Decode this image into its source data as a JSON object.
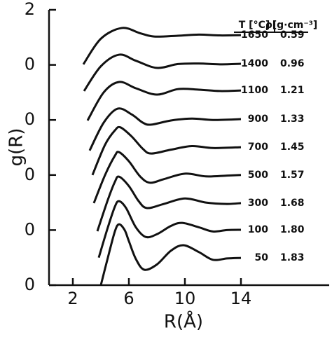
{
  "chart_data": {
    "type": "line",
    "x_label": "R(Å)",
    "y_label": "g(R)",
    "column_headers": [
      "T [°C]",
      "ρ[g·cm⁻³]"
    ],
    "xlim": [
      0.3,
      20.3
    ],
    "xticks": [
      2,
      6,
      10,
      14
    ],
    "ylim": [
      0,
      10
    ],
    "yticks": [
      0,
      {
        "value": 2,
        "label": "0"
      },
      {
        "value": 4,
        "label": "0"
      },
      {
        "value": 6,
        "label": "0"
      },
      {
        "value": 8,
        "label": "0"
      },
      {
        "value": 10,
        "label": "2"
      }
    ],
    "color": "#111111",
    "series": [
      {
        "name": "1650",
        "rho": "0.59",
        "x": [
          2.75,
          4.0,
          5.5,
          6.8,
          7.8,
          9.5,
          11,
          12.5,
          14
        ],
        "values": [
          8.02,
          8.95,
          9.34,
          9.15,
          9.03,
          9.06,
          9.1,
          9.07,
          9.08
        ]
      },
      {
        "name": "1400",
        "rho": "0.96",
        "x": [
          2.8,
          4.0,
          5.3,
          6.5,
          8.0,
          9.5,
          11,
          12.5,
          14
        ],
        "values": [
          7.05,
          7.95,
          8.37,
          8.15,
          7.89,
          8.03,
          8.05,
          8.02,
          8.04
        ]
      },
      {
        "name": "1100",
        "rho": "1.21",
        "x": [
          3.05,
          4.2,
          5.3,
          6.5,
          8.0,
          9.5,
          11,
          12.5,
          14
        ],
        "values": [
          5.98,
          7.0,
          7.38,
          7.15,
          6.92,
          7.12,
          7.1,
          7.05,
          7.07
        ]
      },
      {
        "name": "900",
        "rho": "1.33",
        "x": [
          3.2,
          4.2,
          5.2,
          6.2,
          7.0,
          7.6,
          9,
          10.5,
          12,
          14
        ],
        "values": [
          4.89,
          5.9,
          6.41,
          6.2,
          5.9,
          5.83,
          5.98,
          6.05,
          6.0,
          6.03
        ]
      },
      {
        "name": "700",
        "rho": "1.45",
        "x": [
          3.4,
          4.3,
          5.0,
          5.4,
          6.2,
          7.0,
          7.6,
          9,
          10.5,
          12,
          14
        ],
        "values": [
          4.0,
          5.1,
          5.62,
          5.73,
          5.4,
          4.95,
          4.78,
          4.92,
          5.05,
          4.98,
          5.01
        ]
      },
      {
        "name": "500",
        "rho": "1.57",
        "x": [
          3.5,
          4.3,
          5.0,
          5.3,
          6.0,
          6.8,
          7.5,
          8.5,
          10,
          11.5,
          13,
          14
        ],
        "values": [
          2.98,
          4.0,
          4.7,
          4.83,
          4.5,
          3.95,
          3.72,
          3.85,
          4.05,
          3.95,
          3.98,
          4.0
        ]
      },
      {
        "name": "300",
        "rho": "1.68",
        "x": [
          3.75,
          4.5,
          5.0,
          5.3,
          6.0,
          6.7,
          7.3,
          8.5,
          10,
          11.5,
          13,
          14
        ],
        "values": [
          1.96,
          3.1,
          3.75,
          3.94,
          3.6,
          3.05,
          2.8,
          2.95,
          3.15,
          3.0,
          2.95,
          2.98
        ]
      },
      {
        "name": "100",
        "rho": "1.80",
        "x": [
          3.85,
          4.5,
          5.0,
          5.3,
          5.8,
          6.5,
          7.2,
          8.0,
          9.0,
          9.8,
          11,
          12,
          13,
          14
        ],
        "values": [
          1.0,
          2.1,
          2.85,
          3.05,
          2.8,
          2.1,
          1.75,
          1.85,
          2.15,
          2.26,
          2.1,
          1.95,
          2.0,
          2.01
        ]
      },
      {
        "name": "50",
        "rho": "1.83",
        "x": [
          4.0,
          4.5,
          5.0,
          5.3,
          5.7,
          6.0,
          6.5,
          7.1,
          8.0,
          9.0,
          9.9,
          11,
          12,
          13,
          14
        ],
        "values": [
          0,
          1.0,
          1.95,
          2.21,
          2.0,
          1.6,
          0.95,
          0.56,
          0.75,
          1.25,
          1.45,
          1.2,
          0.92,
          0.97,
          0.99
        ]
      }
    ]
  }
}
